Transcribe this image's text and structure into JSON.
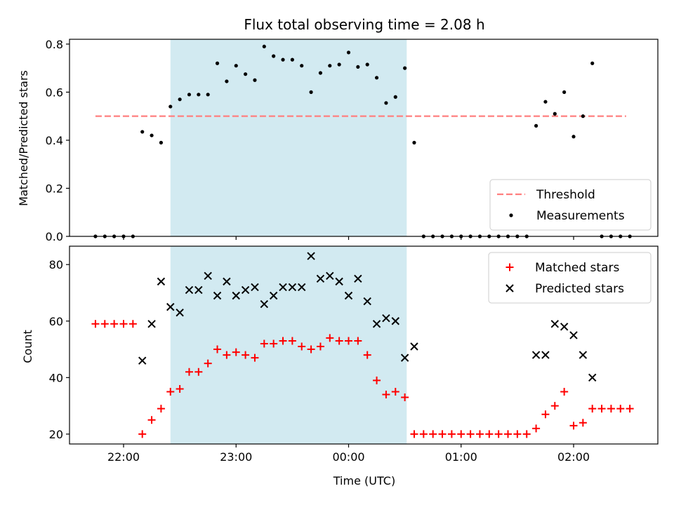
{
  "chart_data": {
    "title": "Flux total observing time = 2.08 h",
    "shaded_span": {
      "start": "22:25",
      "end": "00:31",
      "color": "#add8e6"
    },
    "x_ticks": [
      "22:00",
      "23:00",
      "00:00",
      "01:00",
      "02:00"
    ],
    "xlabel": "Time (UTC)",
    "panels": [
      {
        "type": "scatter",
        "ylabel": "Matched/Predicted stars",
        "ylim": [
          0,
          0.82
        ],
        "y_ticks": [
          "0.0",
          "0.2",
          "0.4",
          "0.6",
          "0.8"
        ],
        "legend_position": "lower-right",
        "threshold": {
          "name": "Threshold",
          "value": 0.5,
          "x_range": [
            "21:45",
            "02:28"
          ],
          "color": "#ff7f7f"
        },
        "series": [
          {
            "name": "Measurements",
            "color": "#000000",
            "points": [
              [
                "21:45",
                0.0
              ],
              [
                "21:50",
                0.0
              ],
              [
                "21:55",
                0.0
              ],
              [
                "22:00",
                0.0
              ],
              [
                "22:05",
                0.0
              ],
              [
                "22:10",
                0.435
              ],
              [
                "22:15",
                0.42
              ],
              [
                "22:20",
                0.39
              ],
              [
                "22:25",
                0.54
              ],
              [
                "22:30",
                0.57
              ],
              [
                "22:35",
                0.59
              ],
              [
                "22:40",
                0.59
              ],
              [
                "22:45",
                0.59
              ],
              [
                "22:50",
                0.72
              ],
              [
                "22:55",
                0.645
              ],
              [
                "23:00",
                0.71
              ],
              [
                "23:05",
                0.675
              ],
              [
                "23:10",
                0.65
              ],
              [
                "23:15",
                0.79
              ],
              [
                "23:20",
                0.75
              ],
              [
                "23:25",
                0.735
              ],
              [
                "23:30",
                0.735
              ],
              [
                "23:35",
                0.71
              ],
              [
                "23:40",
                0.6
              ],
              [
                "23:45",
                0.68
              ],
              [
                "23:50",
                0.71
              ],
              [
                "23:55",
                0.715
              ],
              [
                "00:00",
                0.765
              ],
              [
                "00:05",
                0.705
              ],
              [
                "00:10",
                0.715
              ],
              [
                "00:15",
                0.66
              ],
              [
                "00:20",
                0.555
              ],
              [
                "00:25",
                0.58
              ],
              [
                "00:30",
                0.7
              ],
              [
                "00:35",
                0.39
              ],
              [
                "00:40",
                0.0
              ],
              [
                "00:45",
                0.0
              ],
              [
                "00:50",
                0.0
              ],
              [
                "00:55",
                0.0
              ],
              [
                "01:00",
                0.0
              ],
              [
                "01:05",
                0.0
              ],
              [
                "01:10",
                0.0
              ],
              [
                "01:15",
                0.0
              ],
              [
                "01:20",
                0.0
              ],
              [
                "01:25",
                0.0
              ],
              [
                "01:30",
                0.0
              ],
              [
                "01:35",
                0.0
              ],
              [
                "01:40",
                0.46
              ],
              [
                "01:45",
                0.56
              ],
              [
                "01:50",
                0.51
              ],
              [
                "01:55",
                0.6
              ],
              [
                "02:00",
                0.415
              ],
              [
                "02:05",
                0.5
              ],
              [
                "02:10",
                0.72
              ],
              [
                "02:15",
                0.0
              ],
              [
                "02:20",
                0.0
              ],
              [
                "02:25",
                0.0
              ],
              [
                "02:30",
                0.0
              ]
            ]
          }
        ]
      },
      {
        "type": "scatter",
        "ylabel": "Count",
        "ylim": [
          16.5,
          86.5
        ],
        "y_ticks": [
          "20",
          "40",
          "60",
          "80"
        ],
        "legend_position": "upper-right",
        "series": [
          {
            "name": "Matched stars",
            "marker": "plus",
            "color": "#ff0000",
            "points": [
              [
                "21:45",
                59
              ],
              [
                "21:50",
                59
              ],
              [
                "21:55",
                59
              ],
              [
                "22:00",
                59
              ],
              [
                "22:05",
                59
              ],
              [
                "22:10",
                20
              ],
              [
                "22:15",
                25
              ],
              [
                "22:20",
                29
              ],
              [
                "22:25",
                35
              ],
              [
                "22:30",
                36
              ],
              [
                "22:35",
                42
              ],
              [
                "22:40",
                42
              ],
              [
                "22:45",
                45
              ],
              [
                "22:50",
                50
              ],
              [
                "22:55",
                48
              ],
              [
                "23:00",
                49
              ],
              [
                "23:05",
                48
              ],
              [
                "23:10",
                47
              ],
              [
                "23:15",
                52
              ],
              [
                "23:20",
                52
              ],
              [
                "23:25",
                53
              ],
              [
                "23:30",
                53
              ],
              [
                "23:35",
                51
              ],
              [
                "23:40",
                50
              ],
              [
                "23:45",
                51
              ],
              [
                "23:50",
                54
              ],
              [
                "23:55",
                53
              ],
              [
                "00:00",
                53
              ],
              [
                "00:05",
                53
              ],
              [
                "00:10",
                48
              ],
              [
                "00:15",
                39
              ],
              [
                "00:20",
                34
              ],
              [
                "00:25",
                35
              ],
              [
                "00:30",
                33
              ],
              [
                "00:35",
                20
              ],
              [
                "00:40",
                20
              ],
              [
                "00:45",
                20
              ],
              [
                "00:50",
                20
              ],
              [
                "00:55",
                20
              ],
              [
                "01:00",
                20
              ],
              [
                "01:05",
                20
              ],
              [
                "01:10",
                20
              ],
              [
                "01:15",
                20
              ],
              [
                "01:20",
                20
              ],
              [
                "01:25",
                20
              ],
              [
                "01:30",
                20
              ],
              [
                "01:35",
                20
              ],
              [
                "01:40",
                22
              ],
              [
                "01:45",
                27
              ],
              [
                "01:50",
                30
              ],
              [
                "01:55",
                35
              ],
              [
                "02:00",
                23
              ],
              [
                "02:05",
                24
              ],
              [
                "02:10",
                29
              ],
              [
                "02:15",
                29
              ],
              [
                "02:20",
                29
              ],
              [
                "02:25",
                29
              ],
              [
                "02:30",
                29
              ]
            ]
          },
          {
            "name": "Predicted stars",
            "marker": "x",
            "color": "#000000",
            "points": [
              [
                "22:10",
                46
              ],
              [
                "22:15",
                59
              ],
              [
                "22:20",
                74
              ],
              [
                "22:25",
                65
              ],
              [
                "22:30",
                63
              ],
              [
                "22:35",
                71
              ],
              [
                "22:40",
                71
              ],
              [
                "22:45",
                76
              ],
              [
                "22:50",
                69
              ],
              [
                "22:55",
                74
              ],
              [
                "23:00",
                69
              ],
              [
                "23:05",
                71
              ],
              [
                "23:10",
                72
              ],
              [
                "23:15",
                66
              ],
              [
                "23:20",
                69
              ],
              [
                "23:25",
                72
              ],
              [
                "23:30",
                72
              ],
              [
                "23:35",
                72
              ],
              [
                "23:40",
                83
              ],
              [
                "23:45",
                75
              ],
              [
                "23:50",
                76
              ],
              [
                "23:55",
                74
              ],
              [
                "00:00",
                69
              ],
              [
                "00:05",
                75
              ],
              [
                "00:10",
                67
              ],
              [
                "00:15",
                59
              ],
              [
                "00:20",
                61
              ],
              [
                "00:25",
                60
              ],
              [
                "00:30",
                47
              ],
              [
                "00:35",
                51
              ],
              [
                "01:40",
                48
              ],
              [
                "01:45",
                48
              ],
              [
                "01:50",
                59
              ],
              [
                "01:55",
                58
              ],
              [
                "02:00",
                55
              ],
              [
                "02:05",
                48
              ],
              [
                "02:10",
                40
              ]
            ]
          }
        ]
      }
    ]
  }
}
